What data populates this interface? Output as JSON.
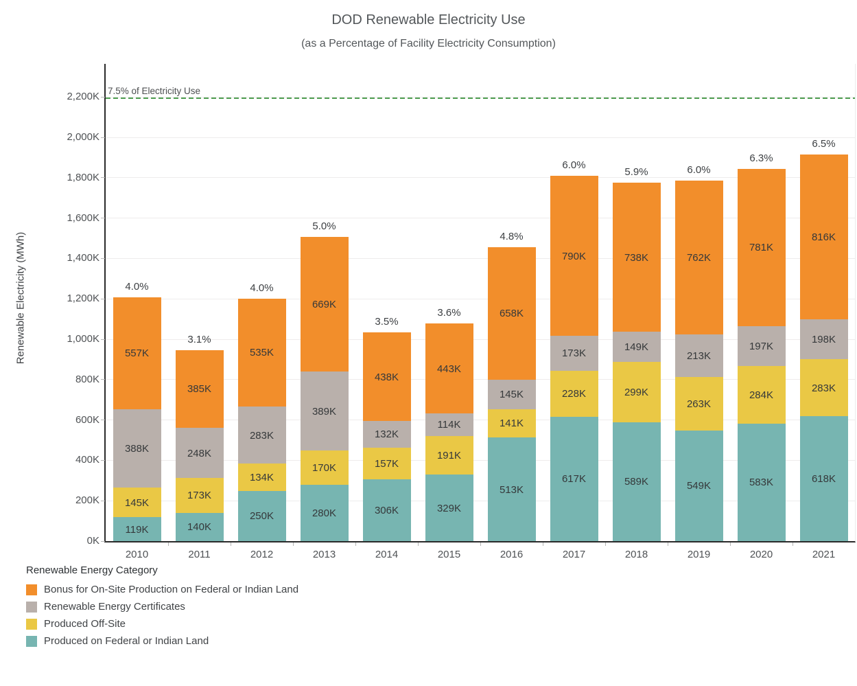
{
  "header": {
    "title": "DOD Renewable Electricity Use",
    "subtitle": "(as a Percentage of Facility Electricity Consumption)"
  },
  "y_axis": {
    "title": "Renewable Electricity (MWh)"
  },
  "reference_line": {
    "label": "7.5% of Electricity Use"
  },
  "legend": {
    "title": "Renewable Energy Category",
    "items": [
      {
        "label": "Bonus for On-Site Production on Federal or Indian Land",
        "color": "#F28E2B"
      },
      {
        "label": "Renewable Energy Certificates",
        "color": "#B9B0AB"
      },
      {
        "label": "Produced Off-Site",
        "color": "#EAC845"
      },
      {
        "label": "Produced on Federal or Indian Land",
        "color": "#77B5B1"
      }
    ]
  },
  "chart_data": {
    "type": "bar",
    "stacked": true,
    "title": "DOD Renewable Electricity Use",
    "subtitle": "(as a Percentage of Facility Electricity Consumption)",
    "xlabel": "",
    "ylabel": "Renewable Electricity (MWh)",
    "value_unit": "K MWh",
    "categories": [
      "2010",
      "2011",
      "2012",
      "2013",
      "2014",
      "2015",
      "2016",
      "2017",
      "2018",
      "2019",
      "2020",
      "2021"
    ],
    "series": [
      {
        "name": "Produced on Federal or Indian Land",
        "color": "#77B5B1",
        "values": [
          119,
          140,
          250,
          280,
          306,
          329,
          513,
          617,
          589,
          549,
          583,
          618
        ]
      },
      {
        "name": "Produced Off-Site",
        "color": "#EAC845",
        "values": [
          145,
          173,
          134,
          170,
          157,
          191,
          141,
          228,
          299,
          263,
          284,
          283
        ]
      },
      {
        "name": "Renewable Energy Certificates",
        "color": "#B9B0AB",
        "values": [
          388,
          248,
          283,
          389,
          132,
          114,
          145,
          173,
          149,
          213,
          197,
          198
        ]
      },
      {
        "name": "Bonus for On-Site Production on Federal or Indian Land",
        "color": "#F28E2B",
        "values": [
          557,
          385,
          535,
          669,
          438,
          443,
          658,
          790,
          738,
          762,
          781,
          816
        ]
      }
    ],
    "bar_totals_k": [
      1209,
      946,
      1202,
      1508,
      1033,
      1077,
      1457,
      1808,
      1775,
      1787,
      1845,
      1915
    ],
    "bar_total_labels_pct": [
      "4.0%",
      "3.1%",
      "4.0%",
      "5.0%",
      "3.5%",
      "3.6%",
      "4.8%",
      "6.0%",
      "5.9%",
      "6.0%",
      "6.3%",
      "6.5%"
    ],
    "segment_label_suffix": "K",
    "yticks_k": [
      0,
      200,
      400,
      600,
      800,
      1000,
      1200,
      1400,
      1600,
      1800,
      2000,
      2200
    ],
    "ytick_labels": [
      "0K",
      "200K",
      "400K",
      "600K",
      "800K",
      "1,000K",
      "1,200K",
      "1,400K",
      "1,600K",
      "1,800K",
      "2,000K",
      "2,200K"
    ],
    "ylim_k": [
      0,
      2364
    ],
    "grid": true,
    "legend_position": "bottom-left",
    "reference_line": {
      "label": "7.5% of Electricity Use",
      "value_k": 2195,
      "style": "dashed",
      "color": "#4f9e51"
    }
  }
}
